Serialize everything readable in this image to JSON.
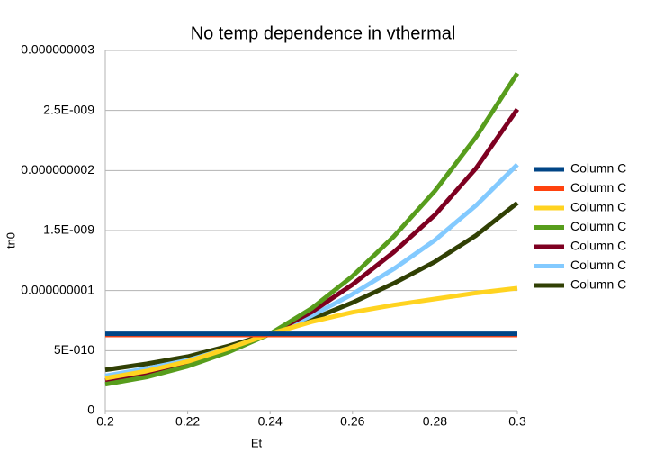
{
  "chart_data": {
    "type": "line",
    "title": "No temp dependence in vthermal",
    "x_label": "Et",
    "y_label": "tn0",
    "x": [
      0.2,
      0.21,
      0.22,
      0.23,
      0.24,
      0.25,
      0.26,
      0.27,
      0.28,
      0.29,
      0.3
    ],
    "xlim": [
      0.2,
      0.3
    ],
    "xticks": [
      0.2,
      0.22,
      0.24,
      0.26,
      0.28,
      0.3
    ],
    "ylim": [
      0,
      3e-09
    ],
    "yticks": [
      0,
      {
        "value": 5e-10,
        "label": "5E-010"
      },
      {
        "value": 1e-09,
        "label": "0.000000001"
      },
      {
        "value": 1.5e-09,
        "label": "1.5E-009"
      },
      {
        "value": 2e-09,
        "label": "0.000000002"
      },
      {
        "value": 2.5e-09,
        "label": "2.5E-009"
      },
      {
        "value": 3e-09,
        "label": "0.000000003"
      }
    ],
    "grid": true,
    "legend": "right",
    "series": [
      {
        "name": "Column C",
        "color": "#004586",
        "values": [
          6.4e-10,
          6.4e-10,
          6.4e-10,
          6.4e-10,
          6.4e-10,
          6.4e-10,
          6.4e-10,
          6.4e-10,
          6.4e-10,
          6.4e-10,
          6.4e-10
        ]
      },
      {
        "name": "Column C",
        "color": "#ff420e",
        "values": [
          6.3e-10,
          6.3e-10,
          6.3e-10,
          6.3e-10,
          6.3e-10,
          6.3e-10,
          6.3e-10,
          6.3e-10,
          6.3e-10,
          6.3e-10,
          6.3e-10
        ]
      },
      {
        "name": "Column C",
        "color": "#ffd320",
        "values": [
          2.7e-10,
          3.3e-10,
          4.1e-10,
          5.2e-10,
          6.4e-10,
          7.4e-10,
          8.2e-10,
          8.8e-10,
          9.3e-10,
          9.8e-10,
          1.02e-09
        ]
      },
      {
        "name": "Column C",
        "color": "#579d1c",
        "values": [
          2.2e-10,
          2.8e-10,
          3.7e-10,
          4.9e-10,
          6.4e-10,
          8.5e-10,
          1.12e-09,
          1.45e-09,
          1.83e-09,
          2.28e-09,
          2.81e-09
        ]
      },
      {
        "name": "Column C",
        "color": "#7e0021",
        "values": [
          2.5e-10,
          3.1e-10,
          3.9e-10,
          5e-10,
          6.4e-10,
          8.2e-10,
          1.05e-09,
          1.32e-09,
          1.63e-09,
          2.02e-09,
          2.51e-09
        ]
      },
      {
        "name": "Column C",
        "color": "#83caff",
        "values": [
          2.9e-10,
          3.5e-10,
          4.2e-10,
          5.2e-10,
          6.4e-10,
          7.9e-10,
          9.7e-10,
          1.18e-09,
          1.42e-09,
          1.71e-09,
          2.05e-09
        ]
      },
      {
        "name": "Column C",
        "color": "#314004",
        "values": [
          3.4e-10,
          3.9e-10,
          4.5e-10,
          5.4e-10,
          6.4e-10,
          7.6e-10,
          9e-10,
          1.06e-09,
          1.24e-09,
          1.46e-09,
          1.73e-09
        ]
      }
    ]
  }
}
